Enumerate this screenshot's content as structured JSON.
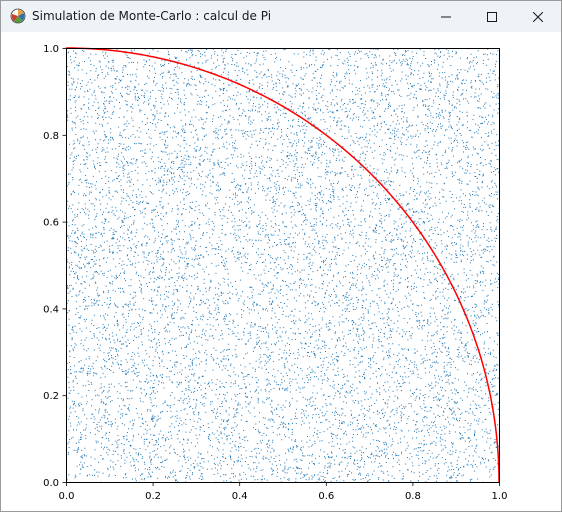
{
  "window": {
    "title": "Simulation de Monte-Carlo : calcul de Pi",
    "icon": "matplotlib-icon",
    "controls": [
      "minimize-icon",
      "maximize-icon",
      "close-icon"
    ]
  },
  "chart_data": {
    "type": "scatter",
    "title": "",
    "xlabel": "",
    "ylabel": "",
    "xlim": [
      0.0,
      1.0
    ],
    "ylim": [
      0.0,
      1.0
    ],
    "x_ticks": [
      "0.0",
      "0.2",
      "0.4",
      "0.6",
      "0.8",
      "1.0"
    ],
    "y_ticks": [
      "0.0",
      "0.2",
      "0.4",
      "0.6",
      "0.8",
      "1.0"
    ],
    "grid": false,
    "series": [
      {
        "kind": "scatter",
        "description_of_points": "uniform random points in unit square",
        "count_estimate": 10000,
        "color": "#1f77b4",
        "marker_size": 1
      },
      {
        "kind": "line",
        "equation": "x^2 + y^2 = 1, 0 <= x <= 1",
        "color": "#ff0000"
      }
    ]
  }
}
